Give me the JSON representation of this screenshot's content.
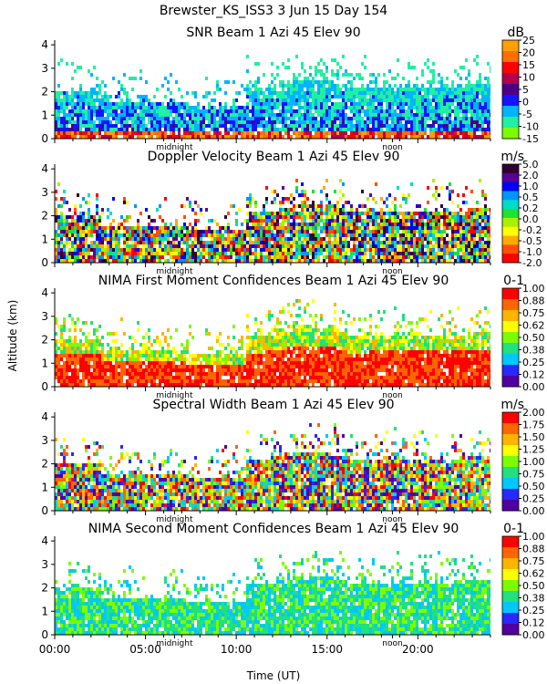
{
  "header": {
    "line1": "Brewster_KS_ISS3    3 Jun 15 Day 154"
  },
  "x_axis": {
    "label": "Time (UT)",
    "ticks": [
      "00:00",
      "05:00",
      "10:00",
      "15:00",
      "20:00"
    ],
    "tick_hours": [
      0,
      5,
      10,
      15,
      20
    ],
    "range_hours": [
      0,
      24
    ],
    "midnight_label": "midnight",
    "midnight_hour": 6.6,
    "noon_label": "noon",
    "noon_hour": 18.6
  },
  "y_axis": {
    "label": "Altitude (km)",
    "ticks": [
      "0",
      "1",
      "2",
      "3",
      "4"
    ],
    "range_km": [
      0,
      4.2
    ]
  },
  "chart_data": [
    {
      "type": "heatmap",
      "title": "SNR Beam 1 Azi  45 Elev 90",
      "unit": "dB",
      "colorbar_labels": [
        "25",
        "20",
        "15",
        "10",
        "5",
        "0",
        "-5",
        "-10",
        "-15"
      ],
      "colorbar_colors": [
        "#ff9f00",
        "#ff6e00",
        "#ff0000",
        "#b4004a",
        "#4b0082",
        "#1414ff",
        "#00b4ff",
        "#20f0a0",
        "#7cfc00"
      ],
      "xlabel": "Time (UT)",
      "ylabel": "Altitude (km)",
      "xlim": [
        0,
        24
      ],
      "ylim": [
        0,
        4.2
      ]
    },
    {
      "type": "heatmap",
      "title": "Doppler Velocity Beam 1 Azi  45 Elev 90",
      "unit": "m/s",
      "colorbar_labels": [
        "5.0",
        "2.0",
        "1.0",
        "0.5",
        "0.2",
        "0.0",
        "-0.2",
        "-0.5",
        "-1.0",
        "-2.0"
      ],
      "colorbar_colors": [
        "#300030",
        "#5a0096",
        "#0000ff",
        "#0096ff",
        "#00dcc8",
        "#20e030",
        "#aaf000",
        "#ffff00",
        "#ffaa00",
        "#ff5000",
        "#ff0000"
      ],
      "xlabel": "Time (UT)",
      "ylabel": "Altitude (km)",
      "xlim": [
        0,
        24
      ],
      "ylim": [
        0,
        4.2
      ]
    },
    {
      "type": "heatmap",
      "title": "NIMA First Moment Confidences Beam 1 Azi  45 Elev 90",
      "unit": "0-1",
      "colorbar_labels": [
        "1.00",
        "0.88",
        "0.75",
        "0.62",
        "0.50",
        "0.38",
        "0.25",
        "0.12",
        "0.00"
      ],
      "colorbar_colors": [
        "#ff0000",
        "#ff6400",
        "#ffb400",
        "#ffff00",
        "#7cfc00",
        "#20e080",
        "#00c8ff",
        "#2828ff",
        "#5000a0"
      ],
      "xlabel": "Time (UT)",
      "ylabel": "Altitude (km)",
      "xlim": [
        0,
        24
      ],
      "ylim": [
        0,
        4.2
      ]
    },
    {
      "type": "heatmap",
      "title": "Spectral Width Beam 1 Azi  45 Elev 90",
      "unit": "m/s",
      "colorbar_labels": [
        "2.00",
        "1.75",
        "1.50",
        "1.25",
        "1.00",
        "0.75",
        "0.50",
        "0.25",
        "0.00"
      ],
      "colorbar_colors": [
        "#ff0000",
        "#ff6400",
        "#ffb400",
        "#ffff00",
        "#7cfc00",
        "#20e080",
        "#00c8ff",
        "#2828ff",
        "#5000a0"
      ],
      "xlabel": "Time (UT)",
      "ylabel": "Altitude (km)",
      "xlim": [
        0,
        24
      ],
      "ylim": [
        0,
        4.2
      ]
    },
    {
      "type": "heatmap",
      "title": "NIMA Second Moment Confidences Beam 1 Azi  45 Elev 90",
      "unit": "0-1",
      "colorbar_labels": [
        "1.00",
        "0.88",
        "0.75",
        "0.62",
        "0.50",
        "0.38",
        "0.25",
        "0.12",
        "0.00"
      ],
      "colorbar_colors": [
        "#ff0000",
        "#ff6400",
        "#ffb400",
        "#ffff00",
        "#7cfc00",
        "#20e080",
        "#00c8ff",
        "#2828ff",
        "#5000a0"
      ],
      "xlabel": "Time (UT)",
      "ylabel": "Altitude (km)",
      "xlim": [
        0,
        24
      ],
      "ylim": [
        0,
        4.2
      ]
    }
  ]
}
